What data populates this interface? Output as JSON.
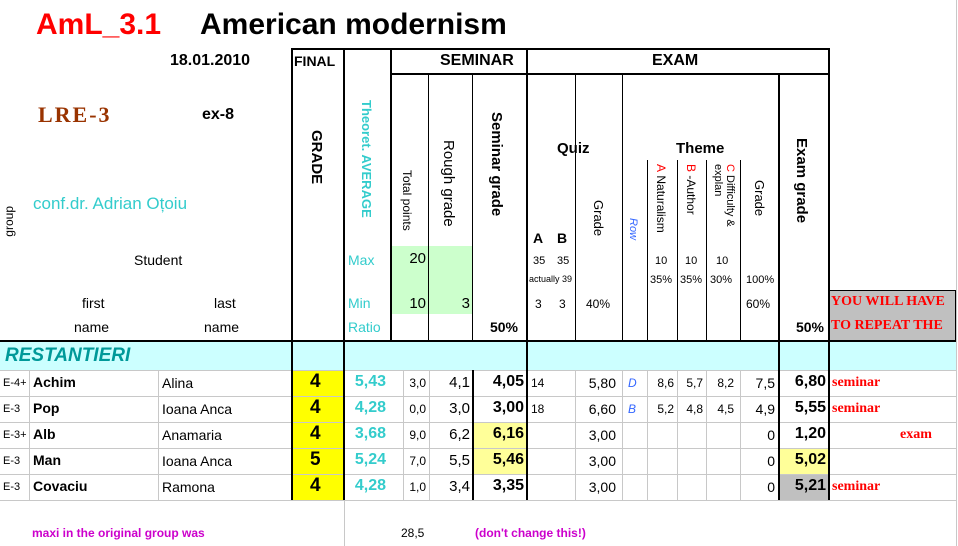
{
  "title": {
    "code": "AmL_3.1",
    "name": "American modernism"
  },
  "date": "18.01.2010",
  "final_label": "FINAL",
  "grade_label": "GRADE",
  "seminar_label": "SEMINAR",
  "exam_label": "EXAM",
  "lre": "LRE-3",
  "ex": "ex-8",
  "teacher": "conf.dr. Adrian Oțoiu",
  "group_label": "group",
  "student_label": "Student",
  "first_label": "first",
  "last_label": "last",
  "name_label": "name",
  "theoret_average": "Theoret. AVERAGE",
  "total_points": "Total points",
  "rough_grade": "Rough grade",
  "seminar_grade": "Seminar grade",
  "quiz_label": "Quiz",
  "theme_label": "Theme",
  "quiz_a": "A",
  "quiz_b": "B",
  "grade_word": "Grade",
  "row_word": "Row",
  "theme_a_letter": "A",
  "theme_a_text": "Naturalism",
  "theme_b_letter": "B",
  "theme_b_text": "-Author",
  "theme_c_letter": "C",
  "theme_c_text": "Difficulty & explan",
  "exam_grade": "Exam grade",
  "max_label": "Max",
  "min_label": "Min",
  "ratio_label": "Ratio",
  "max_total": "20",
  "min_total": "10",
  "min_rough": "3",
  "quiz_max_a": "35",
  "quiz_max_b": "35",
  "actually": "actually 39",
  "quiz_min_a": "3",
  "quiz_min_b": "3",
  "quiz_grade_pct": "40%",
  "theme_max_a": "10",
  "theme_max_b": "10",
  "theme_max_c": "10",
  "theme_pct_a": "35%",
  "theme_pct_b": "35%",
  "theme_pct_c": "30%",
  "theme_grade_max": "100%",
  "theme_grade_min": "60%",
  "seminar_ratio": "50%",
  "exam_ratio": "50%",
  "repeat_text_1": "YOU WILL HAVE",
  "repeat_text_2": "TO REPEAT THE",
  "section_label": "RESTANTIERI",
  "rows": [
    {
      "group": "E-4+",
      "first": "Achim",
      "last": "Alina",
      "final": "4",
      "avg": "5,43",
      "total": "3,0",
      "rough": "4,1",
      "sem": "4,05",
      "quiz": "14",
      "qgrade": "5,80",
      "row": "D",
      "ta": "8,6",
      "tb": "5,7",
      "tc": "8,2",
      "tgrade": "7,5",
      "exam": "6,80",
      "repeat": "seminar"
    },
    {
      "group": "E-3",
      "first": "Pop",
      "last": "Ioana Anca",
      "final": "4",
      "avg": "4,28",
      "total": "0,0",
      "rough": "3,0",
      "sem": "3,00",
      "quiz": "18",
      "qgrade": "6,60",
      "row": "B",
      "ta": "5,2",
      "tb": "4,8",
      "tc": "4,5",
      "tgrade": "4,9",
      "exam": "5,55",
      "repeat": "seminar"
    },
    {
      "group": "E-3+",
      "first": "Alb",
      "last": "Anamaria",
      "final": "4",
      "avg": "3,68",
      "total": "9,0",
      "rough": "6,2",
      "sem": "6,16",
      "quiz": "",
      "qgrade": "3,00",
      "row": "",
      "ta": "",
      "tb": "",
      "tc": "",
      "tgrade": "0",
      "exam": "1,20",
      "repeat": "exam"
    },
    {
      "group": "E-3",
      "first": "Man",
      "last": "Ioana Anca",
      "final": "5",
      "avg": "5,24",
      "total": "7,0",
      "rough": "5,5",
      "sem": "5,46",
      "quiz": "",
      "qgrade": "3,00",
      "row": "",
      "ta": "",
      "tb": "",
      "tc": "",
      "tgrade": "0",
      "exam": "5,02",
      "repeat": ""
    },
    {
      "group": "E-3",
      "first": "Covaciu",
      "last": "Ramona",
      "final": "4",
      "avg": "4,28",
      "total": "1,0",
      "rough": "3,4",
      "sem": "3,35",
      "quiz": "",
      "qgrade": "3,00",
      "row": "",
      "ta": "",
      "tb": "",
      "tc": "",
      "tgrade": "0",
      "exam": "5,21",
      "repeat": "seminar"
    }
  ],
  "footer_note": "maxi in the original group was",
  "footer_value": "28,5",
  "footer_warning": "(don't change this!)",
  "colors": {
    "title_red": "#ff0000",
    "teal": "#33cccc",
    "final_yellow": "#ffff00",
    "light_yellow": "#ffff99",
    "light_green": "#ccffcc",
    "section_cyan": "#ccffff",
    "gray": "#c0c0c0",
    "magenta": "#cc00cc",
    "blue": "#3366ff",
    "brown": "#993300"
  }
}
